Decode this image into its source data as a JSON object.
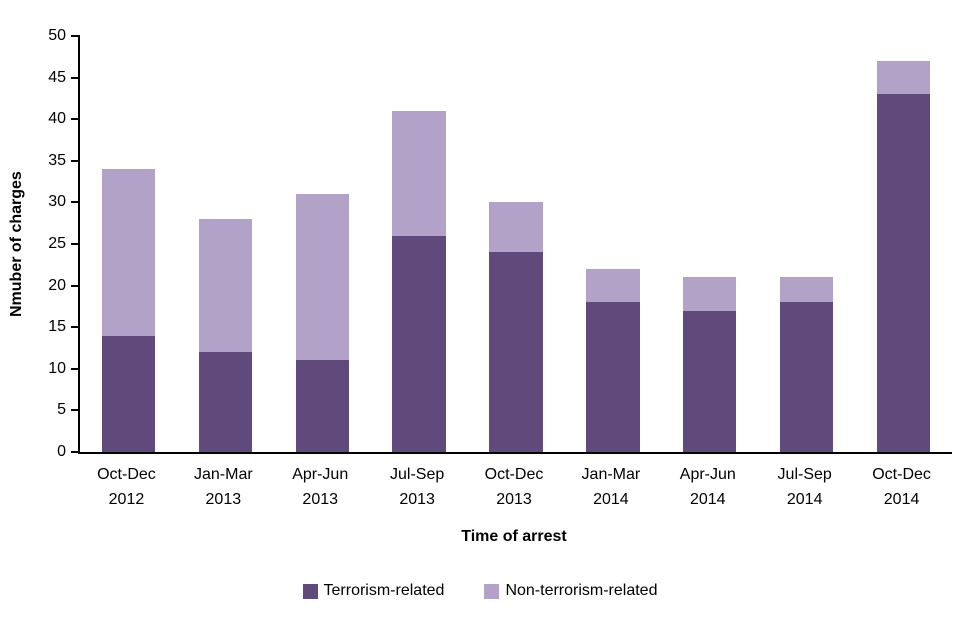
{
  "chart_data": {
    "type": "bar",
    "stacked": true,
    "title": "",
    "xlabel": "Time of arrest",
    "ylabel": "Nmuber of charges",
    "ylim": [
      0,
      50
    ],
    "ytick_step": 5,
    "grid": false,
    "legend_position": "bottom",
    "categories": [
      "Oct-Dec 2012",
      "Jan-Mar 2013",
      "Apr-Jun 2013",
      "Jul-Sep 2013",
      "Oct-Dec 2013",
      "Jan-Mar 2014",
      "Apr-Jun 2014",
      "Jul-Sep 2014",
      "Oct-Dec 2014"
    ],
    "series": [
      {
        "name": "Terrorism-related",
        "color": "#604a7b",
        "values": [
          14,
          12,
          11,
          26,
          24,
          18,
          17,
          18,
          43
        ]
      },
      {
        "name": "Non-terrorism-related",
        "color": "#b3a2c7",
        "values": [
          20,
          16,
          20,
          15,
          6,
          4,
          4,
          3,
          4
        ]
      }
    ],
    "totals": [
      34,
      28,
      31,
      41,
      30,
      22,
      21,
      21,
      47
    ]
  },
  "colors": {
    "background": "#ffffff",
    "axis": "#000000",
    "text": "#000000",
    "terrorism": "#604a7b",
    "non_terrorism": "#b3a2c7"
  }
}
